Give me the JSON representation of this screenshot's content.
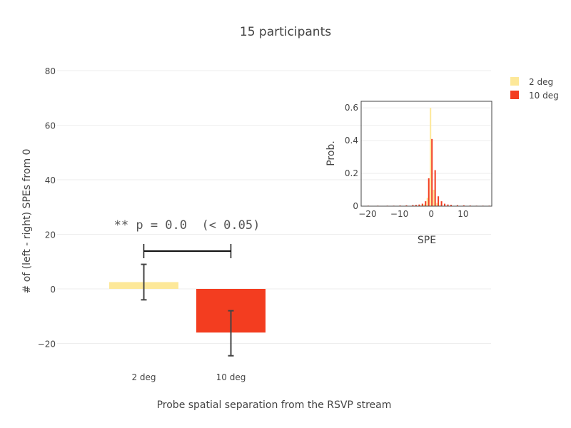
{
  "chart_data": [
    {
      "type": "bar",
      "title": "15 participants",
      "xlabel": "Probe spatial separation from the RSVP stream",
      "ylabel": "# of (left - right) SPEs from 0",
      "categories": [
        "2 deg",
        "10 deg"
      ],
      "values": [
        2.5,
        -16
      ],
      "error_bars": [
        {
          "low": -4,
          "high": 9
        },
        {
          "low": -24.5,
          "high": -8
        }
      ],
      "colors": [
        "#fde899",
        "#f33d20"
      ],
      "ylim": [
        -30,
        85
      ],
      "yticks": [
        "−20",
        "0",
        "20",
        "40",
        "60",
        "80"
      ],
      "ytick_values": [
        -20,
        0,
        20,
        40,
        60,
        80
      ],
      "grid": true,
      "annotation": "** p = 0.0  (< 0.05)",
      "legend": {
        "placement": "top-right",
        "entries": [
          {
            "label": "2 deg",
            "color": "#fde899"
          },
          {
            "label": "10 deg",
            "color": "#f33d20"
          }
        ]
      }
    },
    {
      "type": "bar",
      "xlabel": "SPE",
      "ylabel": "Prob.",
      "xlim": [
        -22,
        19
      ],
      "ylim": [
        0,
        0.64
      ],
      "xticks": [
        "−20",
        "−10",
        "0",
        "10"
      ],
      "xtick_values": [
        -20,
        -10,
        0,
        10
      ],
      "yticks": [
        "0",
        "0.2",
        "0.4",
        "0.6"
      ],
      "ytick_values": [
        0,
        0.2,
        0.4,
        0.6
      ],
      "series": [
        {
          "name": "2 deg",
          "color": "#fde899",
          "x": [
            -3,
            -2,
            -1,
            0,
            1,
            2,
            3
          ],
          "values": [
            0.005,
            0.01,
            0.05,
            0.6,
            0.1,
            0.02,
            0.005
          ]
        },
        {
          "name": "10 deg",
          "color": "#f33d20",
          "x": [
            -20,
            -17,
            -14,
            -12,
            -10,
            -8,
            -6,
            -5,
            -4,
            -3,
            -2,
            -1,
            0,
            1,
            2,
            3,
            4,
            5,
            6,
            8,
            10,
            12,
            14,
            16,
            18
          ],
          "values": [
            0.003,
            0.003,
            0.003,
            0.003,
            0.004,
            0.005,
            0.007,
            0.008,
            0.01,
            0.015,
            0.03,
            0.17,
            0.41,
            0.22,
            0.06,
            0.03,
            0.015,
            0.01,
            0.008,
            0.006,
            0.005,
            0.004,
            0.003,
            0.003,
            0.003
          ]
        }
      ]
    }
  ]
}
